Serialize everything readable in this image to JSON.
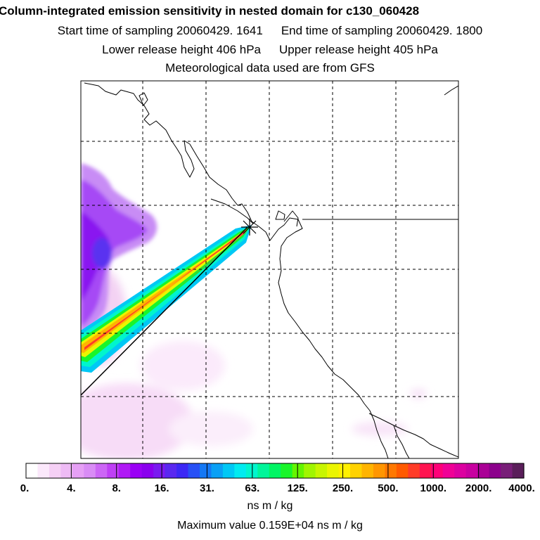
{
  "header": {
    "title": "Column-integrated emission sensitivity in nested domain for c130_060428",
    "start_label": "Start time of sampling 20060429.  1641",
    "end_label": "End time of sampling 20060429.  1800",
    "lower_label": "Lower release height  406 hPa",
    "upper_label": "Upper release height  405 hPa",
    "met_label": "Meteorological data used are from GFS"
  },
  "colorbar": {
    "tick_labels": [
      "0.",
      "4.",
      "8.",
      "16.",
      "31.",
      "63.",
      "125.",
      "250.",
      "500.",
      "1000.",
      "2000.",
      "4000."
    ],
    "units": "ns m / kg",
    "colors": [
      "#ffffff",
      "#fbe8fb",
      "#f5d0f5",
      "#eebbf5",
      "#e6a0f5",
      "#d98cf5",
      "#cc66f5",
      "#bf40f5",
      "#b01af5",
      "#9a00f5",
      "#8a00ee",
      "#7a1af0",
      "#5a28f0",
      "#3c28f5",
      "#2850f5",
      "#1478f5",
      "#0aa0f5",
      "#00c8f5",
      "#00ebf0",
      "#00f5cd",
      "#00f59a",
      "#00f564",
      "#1af52a",
      "#64f500",
      "#a0f500",
      "#c8f500",
      "#ebf500",
      "#fff000",
      "#ffd200",
      "#ffb400",
      "#ff9600",
      "#ff7800",
      "#ff5a00",
      "#ff3c28",
      "#ff1450",
      "#ff0078",
      "#f00096",
      "#dc00a0",
      "#c800a0",
      "#aa0096",
      "#8c008c",
      "#781e78",
      "#5a1e5a"
    ]
  },
  "footer": {
    "max_value": "Maximum value  0.159E+04 ns m / kg"
  },
  "map": {
    "receptor_icon": "star-icon",
    "colors": {
      "land_outline": "#000000",
      "grid": "#000000",
      "frame": "#000000"
    }
  }
}
